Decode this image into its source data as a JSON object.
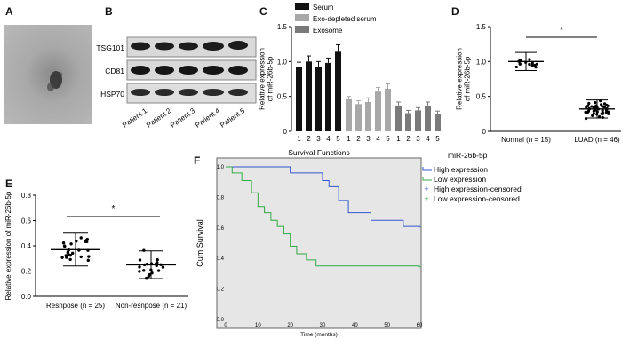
{
  "labels": {
    "A": "A",
    "B": "B",
    "C": "C",
    "D": "D",
    "E": "E",
    "F": "F"
  },
  "panelB": {
    "proteins": [
      "TSG101",
      "CD81",
      "HSP70"
    ],
    "patients": [
      "Patient 1",
      "Patient 2",
      "Patient 3",
      "Patient 4",
      "Patient 5"
    ]
  },
  "colors": {
    "serum": "#111111",
    "exo_depleted": "#a8a8a8",
    "exosome": "#7a7a7a",
    "high": "#3355cc",
    "low": "#33aa44",
    "plot_bg": "#e6e6e6"
  },
  "chart_data": [
    {
      "id": "C",
      "type": "bar",
      "ylabel": "Relative expression\nof miR-26b-5p",
      "ylim": [
        0,
        1.5
      ],
      "yticks": [
        "0",
        "0.5",
        "1.0",
        "1.5"
      ],
      "categories": [
        "1",
        "2",
        "3",
        "4",
        "5"
      ],
      "series": [
        {
          "name": "Serum",
          "values": [
            0.92,
            1.0,
            0.92,
            0.98,
            1.14
          ],
          "errors": [
            0.07,
            0.08,
            0.08,
            0.07,
            0.1
          ]
        },
        {
          "name": "Exo-depleted serum",
          "values": [
            0.46,
            0.39,
            0.42,
            0.57,
            0.61
          ],
          "errors": [
            0.04,
            0.05,
            0.06,
            0.06,
            0.07
          ]
        },
        {
          "name": "Exosome",
          "values": [
            0.37,
            0.26,
            0.3,
            0.37,
            0.25
          ],
          "errors": [
            0.05,
            0.04,
            0.04,
            0.05,
            0.04
          ]
        }
      ]
    },
    {
      "id": "D",
      "type": "scatter",
      "ylabel": "Relative expression\nof miR-26b-5p",
      "ylim": [
        0,
        1.5
      ],
      "yticks": [
        "0",
        "0.5",
        "1.0",
        "1.5"
      ],
      "categories": [
        "Normal (n = 15)",
        "LUAD (n = 46)"
      ],
      "means": [
        1.0,
        0.32
      ],
      "sd": [
        0.13,
        0.13
      ],
      "significance": "*"
    },
    {
      "id": "E",
      "type": "scatter",
      "ylabel": "Relative expression of miR-26b-5p",
      "ylim": [
        0,
        0.8
      ],
      "yticks": [
        "0.0",
        "0.2",
        "0.4",
        "0.6",
        "0.8"
      ],
      "categories": [
        "Resnpose (n = 25)",
        "Non-resnpose (n = 21)"
      ],
      "means": [
        0.37,
        0.25
      ],
      "sd": [
        0.13,
        0.11
      ],
      "significance": "*"
    },
    {
      "id": "F",
      "type": "line",
      "title": "Survival Functions",
      "xlabel": "Time (months)",
      "ylabel": "Cum Survival",
      "xlim": [
        0,
        60
      ],
      "ylim": [
        0,
        1.0
      ],
      "xticks": [
        "0",
        "10",
        "20",
        "30",
        "40",
        "50",
        "60"
      ],
      "yticks": [
        "0.0",
        "0.2",
        "0.4",
        "0.6",
        "0.8",
        "1.0"
      ],
      "legend_title": "miR-26b-5p",
      "legend": [
        "High expression",
        "Low expression",
        "High expression-censored",
        "Low expression-censored"
      ],
      "series": [
        {
          "name": "High expression",
          "x": [
            0,
            10,
            20,
            25,
            30,
            32,
            35,
            38,
            45,
            55,
            60
          ],
          "y": [
            1.0,
            1.0,
            0.96,
            0.96,
            0.91,
            0.87,
            0.78,
            0.7,
            0.65,
            0.61,
            0.61
          ]
        },
        {
          "name": "Low expression",
          "x": [
            0,
            2,
            5,
            8,
            10,
            12,
            14,
            16,
            18,
            20,
            22,
            25,
            28,
            30,
            60
          ],
          "y": [
            1.0,
            0.96,
            0.91,
            0.83,
            0.74,
            0.7,
            0.65,
            0.61,
            0.56,
            0.48,
            0.43,
            0.39,
            0.35,
            0.35,
            0.35
          ]
        }
      ]
    }
  ]
}
